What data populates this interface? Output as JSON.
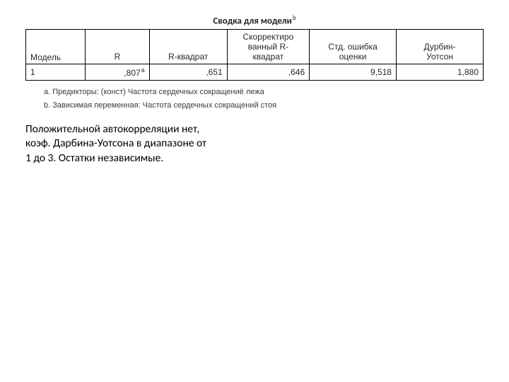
{
  "title": "Сводка для модели",
  "title_sup": "b",
  "table": {
    "columns": [
      {
        "key": "model",
        "label": "Модель",
        "width": "13%",
        "align": "left",
        "header_class": "hmodel"
      },
      {
        "key": "r",
        "label": "R",
        "width": "14%"
      },
      {
        "key": "r2",
        "label": "R-квадрат",
        "width": "17%"
      },
      {
        "key": "adjr2",
        "label": "Скорректиро\nванный R-\nквадрат",
        "width": "18%"
      },
      {
        "key": "se",
        "label": "Стд. ошибка\nоценки",
        "width": "19%"
      },
      {
        "key": "dw",
        "label": "Дурбин-\nУотсон",
        "width": "19%"
      }
    ],
    "rows": [
      {
        "model": "1",
        "r": ",807",
        "r_sup": "a",
        "r2": ",651",
        "adjr2": ",646",
        "se": "9,518",
        "dw": "1,880"
      }
    ],
    "border_color": "#000000",
    "font_size_header": 12,
    "font_size_cell": 12
  },
  "footnotes": {
    "a": "a. Предикторы: (конст) Частота сердечных сокращениё лежа",
    "b": "b. Зависимая переменная: Частота сердечных сокращений стоя"
  },
  "body": {
    "line1": "Положительной автокорреляции нет,",
    "line2": "коэф. Дарбина-Уотсона в диапазоне от",
    "line3": "1 до 3. Остатки независимые."
  }
}
